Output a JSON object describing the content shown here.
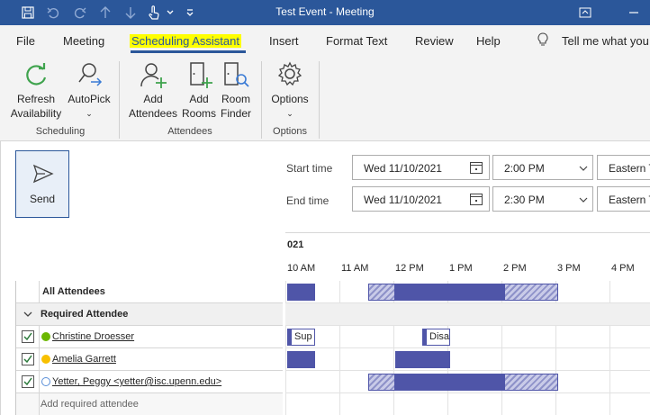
{
  "window": {
    "title": "Test Event  -  Meeting"
  },
  "tabs": [
    {
      "label": "File"
    },
    {
      "label": "Meeting"
    },
    {
      "label": "Scheduling Assistant"
    },
    {
      "label": "Insert"
    },
    {
      "label": "Format Text"
    },
    {
      "label": "Review"
    },
    {
      "label": "Help"
    },
    {
      "label": "Tell me what you"
    }
  ],
  "ribbon": {
    "refresh": {
      "line1": "Refresh",
      "line2": "Availability"
    },
    "autopick": {
      "line1": "AutoPick"
    },
    "scheduling_group": "Scheduling",
    "add_attendees": {
      "line1": "Add",
      "line2": "Attendees"
    },
    "add_rooms": {
      "line1": "Add",
      "line2": "Rooms"
    },
    "room_finder": {
      "line1": "Room",
      "line2": "Finder"
    },
    "attendees_group": "Attendees",
    "options": {
      "line1": "Options"
    },
    "options_group": "Options"
  },
  "send": {
    "label": "Send"
  },
  "times": {
    "start_label": "Start time",
    "start_date": "Wed 11/10/2021",
    "start_time": "2:00 PM",
    "start_tz": "Eastern T",
    "end_label": "End time",
    "end_date": "Wed 11/10/2021",
    "end_time": "2:30 PM",
    "end_tz": "Eastern T"
  },
  "attendees": {
    "all_label": "All Attendees",
    "required_label": "Required Attendee",
    "list": [
      {
        "name": "Christine Droesser",
        "status": "available",
        "status_color": "#6bb700"
      },
      {
        "name": "Amelia Garrett",
        "status": "away",
        "status_color": "#f8c000"
      },
      {
        "name": "Yetter, Peggy <yetter@isc.upenn.edu>",
        "status": "unknown",
        "status_color": "#5a8fd8"
      }
    ],
    "add_placeholder": "Add required attendee"
  },
  "timeline": {
    "date_fragment": "021",
    "hours": [
      "10 AM",
      "11 AM",
      "12 PM",
      "1 PM",
      "2 PM",
      "3 PM",
      "4 PM"
    ],
    "appointments": {
      "christine": "Sup",
      "christine2": "Disa"
    }
  },
  "colors": {
    "accent": "#2b579a",
    "busy": "#4f55a8",
    "highlight": "#ffff00"
  }
}
